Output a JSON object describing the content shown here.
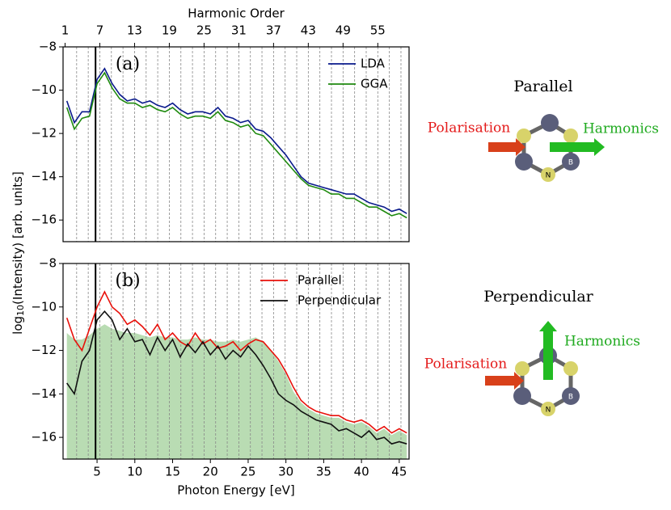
{
  "chart_data": [
    {
      "type": "line",
      "panel_label": "(a)",
      "x2label": "Harmonic Order",
      "x2lim": [
        0.653,
        60.4
      ],
      "x2ticks": [
        1,
        7,
        13,
        19,
        25,
        31,
        37,
        43,
        49,
        55
      ],
      "x2gridlines": [
        3,
        5,
        7,
        9,
        11,
        13,
        15,
        17,
        19,
        21,
        23,
        25,
        27,
        29,
        31,
        33,
        35,
        37,
        39,
        41,
        43,
        45,
        47,
        49,
        51,
        53,
        55,
        57,
        59
      ],
      "xlim": [
        0.5,
        46.3
      ],
      "vline": 4.8,
      "ylim": [
        -17,
        -8
      ],
      "yticks": [
        {
          "value": -8,
          "label": "−8"
        },
        {
          "value": -10,
          "label": "−10"
        },
        {
          "value": -12,
          "label": "−12"
        },
        {
          "value": -14,
          "label": "−14"
        },
        {
          "value": -16,
          "label": "−16"
        }
      ],
      "x": [
        1,
        2,
        3,
        4,
        5,
        6,
        7,
        8,
        9,
        10,
        11,
        12,
        13,
        14,
        15,
        16,
        17,
        18,
        19,
        20,
        21,
        22,
        23,
        24,
        25,
        26,
        27,
        28,
        29,
        30,
        31,
        32,
        33,
        34,
        35,
        36,
        37,
        38,
        39,
        40,
        41,
        42,
        43,
        44,
        45,
        46
      ],
      "series": [
        {
          "name": "LDA",
          "color": "#0a1a8c",
          "values": [
            -10.5,
            -11.5,
            -11,
            -11,
            -9.5,
            -9,
            -9.7,
            -10.2,
            -10.5,
            -10.4,
            -10.6,
            -10.5,
            -10.7,
            -10.8,
            -10.6,
            -10.9,
            -11.1,
            -11,
            -11,
            -11.1,
            -10.8,
            -11.2,
            -11.3,
            -11.5,
            -11.4,
            -11.8,
            -11.9,
            -12.2,
            -12.6,
            -13,
            -13.5,
            -14,
            -14.3,
            -14.4,
            -14.5,
            -14.6,
            -14.7,
            -14.8,
            -14.8,
            -15,
            -15.2,
            -15.3,
            -15.4,
            -15.6,
            -15.5,
            -15.7
          ]
        },
        {
          "name": "GGA",
          "color": "#1f8a0f",
          "values": [
            -10.8,
            -11.8,
            -11.3,
            -11.2,
            -9.7,
            -9.2,
            -9.9,
            -10.4,
            -10.6,
            -10.6,
            -10.8,
            -10.7,
            -10.9,
            -11,
            -10.8,
            -11.1,
            -11.3,
            -11.2,
            -11.2,
            -11.3,
            -11,
            -11.4,
            -11.5,
            -11.7,
            -11.6,
            -12,
            -12.1,
            -12.5,
            -12.9,
            -13.3,
            -13.7,
            -14.1,
            -14.4,
            -14.5,
            -14.6,
            -14.8,
            -14.8,
            -15,
            -15,
            -15.2,
            -15.4,
            -15.4,
            -15.6,
            -15.8,
            -15.7,
            -15.9
          ]
        }
      ]
    },
    {
      "type": "line",
      "panel_label": "(b)",
      "xlabel": "Photon Energy [eV]",
      "x2lim": [
        0.653,
        60.4
      ],
      "x2gridlines": [
        3,
        5,
        7,
        9,
        11,
        13,
        15,
        17,
        19,
        21,
        23,
        25,
        27,
        29,
        31,
        33,
        35,
        37,
        39,
        41,
        43,
        45,
        47,
        49,
        51,
        53,
        55,
        57,
        59
      ],
      "xlim": [
        0.5,
        46.3
      ],
      "xticks": [
        5,
        10,
        15,
        20,
        25,
        30,
        35,
        40,
        45
      ],
      "vline": 4.8,
      "ylim": [
        -17,
        -8
      ],
      "yticks": [
        {
          "value": -8,
          "label": "−8"
        },
        {
          "value": -10,
          "label": "−10"
        },
        {
          "value": -12,
          "label": "−12"
        },
        {
          "value": -14,
          "label": "−14"
        },
        {
          "value": -16,
          "label": "−16"
        }
      ],
      "x": [
        1,
        2,
        3,
        4,
        5,
        6,
        7,
        8,
        9,
        10,
        11,
        12,
        13,
        14,
        15,
        16,
        17,
        18,
        19,
        20,
        21,
        22,
        23,
        24,
        25,
        26,
        27,
        28,
        29,
        30,
        31,
        32,
        33,
        34,
        35,
        36,
        37,
        38,
        39,
        40,
        41,
        42,
        43,
        44,
        45,
        46
      ],
      "fill": {
        "color": "#b9dcb3",
        "values": [
          -11.2,
          -11.5,
          -11.5,
          -11.3,
          -11,
          -10.8,
          -11,
          -11.1,
          -11.2,
          -11.2,
          -11.3,
          -11.4,
          -11.3,
          -11.4,
          -11.4,
          -11.5,
          -11.5,
          -11.4,
          -11.5,
          -11.5,
          -11.6,
          -11.6,
          -11.5,
          -11.6,
          -11.5,
          -11.4,
          -11.6,
          -12,
          -12.5,
          -13.1,
          -13.9,
          -14.4,
          -14.7,
          -14.9,
          -15,
          -15.1,
          -15.1,
          -15.3,
          -15.4,
          -15.3,
          -15.5,
          -15.8,
          -15.6,
          -15.9,
          -15.7,
          -15.9
        ]
      },
      "series": [
        {
          "name": "Parallel",
          "color": "#e8100a",
          "values": [
            -10.5,
            -11.5,
            -12,
            -11,
            -10,
            -9.3,
            -10,
            -10.3,
            -10.8,
            -10.6,
            -10.9,
            -11.3,
            -10.8,
            -11.5,
            -11.2,
            -11.6,
            -11.8,
            -11.2,
            -11.7,
            -11.5,
            -11.9,
            -11.8,
            -11.6,
            -12,
            -11.7,
            -11.5,
            -11.6,
            -12,
            -12.4,
            -13,
            -13.7,
            -14.3,
            -14.6,
            -14.8,
            -14.9,
            -15,
            -15,
            -15.2,
            -15.3,
            -15.2,
            -15.4,
            -15.7,
            -15.5,
            -15.8,
            -15.6,
            -15.8
          ]
        },
        {
          "name": "Perpendicular",
          "color": "#111111",
          "values": [
            -13.5,
            -14,
            -12.5,
            -12,
            -10.6,
            -10.2,
            -10.6,
            -11.5,
            -11,
            -11.6,
            -11.5,
            -12.2,
            -11.4,
            -12,
            -11.5,
            -12.3,
            -11.7,
            -12.1,
            -11.6,
            -12.2,
            -11.8,
            -12.4,
            -12,
            -12.3,
            -11.8,
            -12.2,
            -12.7,
            -13.3,
            -14,
            -14.3,
            -14.5,
            -14.8,
            -15,
            -15.2,
            -15.3,
            -15.4,
            -15.7,
            -15.6,
            -15.8,
            -16,
            -15.7,
            -16.1,
            -16,
            -16.3,
            -16.2,
            -16.3
          ]
        }
      ]
    }
  ],
  "shared": {
    "ylabel": {
      "main": "log",
      "sub": "10",
      "rest": "(Intensity) [arb. units]"
    }
  },
  "diagram": {
    "parallel": {
      "title": "Parallel",
      "polarisation": "Polarisation",
      "harmonics": "Harmonics",
      "atom_n": "N",
      "atom_b": "B"
    },
    "perpendicular": {
      "title": "Perpendicular",
      "polarisation": "Polarisation",
      "harmonics": "Harmonics",
      "atom_n": "N",
      "atom_b": "B"
    }
  }
}
